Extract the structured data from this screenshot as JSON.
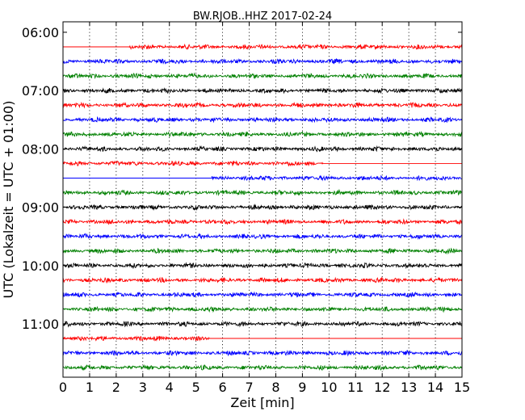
{
  "chart_data": {
    "type": "line",
    "title": "BW.RJOB..HHZ 2017-02-24",
    "xlabel": "Zeit  [min]",
    "ylabel": "UTC (Lokalzeit = UTC + 01:00)",
    "xlim": [
      0,
      15
    ],
    "x_ticks": [
      "0",
      "1",
      "2",
      "3",
      "4",
      "5",
      "6",
      "7",
      "8",
      "9",
      "10",
      "11",
      "12",
      "13",
      "14",
      "15"
    ],
    "y_ticks": [
      "06:00",
      "07:00",
      "08:00",
      "09:00",
      "10:00",
      "11:00"
    ],
    "grid": "vertical dotted",
    "legend": "none",
    "trace_interval_minutes": 15,
    "traces": [
      {
        "start": "06:00",
        "color": "#ff0000",
        "data_from_min": 2.5,
        "data_to_min": 15
      },
      {
        "start": "06:15",
        "color": "#0000ff",
        "data_from_min": 0,
        "data_to_min": 15
      },
      {
        "start": "06:30",
        "color": "#008000",
        "data_from_min": 0,
        "data_to_min": 15
      },
      {
        "start": "06:45",
        "color": "#000000",
        "data_from_min": 0,
        "data_to_min": 15
      },
      {
        "start": "07:00",
        "color": "#ff0000",
        "data_from_min": 0,
        "data_to_min": 15
      },
      {
        "start": "07:15",
        "color": "#0000ff",
        "data_from_min": 0,
        "data_to_min": 15
      },
      {
        "start": "07:30",
        "color": "#008000",
        "data_from_min": 0,
        "data_to_min": 15
      },
      {
        "start": "07:45",
        "color": "#000000",
        "data_from_min": 0,
        "data_to_min": 15
      },
      {
        "start": "08:00",
        "color": "#ff0000",
        "data_from_min": 0,
        "data_to_min": 9.8
      },
      {
        "start": "08:15",
        "color": "#0000ff",
        "data_from_min": 5.6,
        "data_to_min": 15
      },
      {
        "start": "08:30",
        "color": "#008000",
        "data_from_min": 0,
        "data_to_min": 15
      },
      {
        "start": "08:45",
        "color": "#000000",
        "data_from_min": 0,
        "data_to_min": 15
      },
      {
        "start": "09:00",
        "color": "#ff0000",
        "data_from_min": 0,
        "data_to_min": 15
      },
      {
        "start": "09:15",
        "color": "#0000ff",
        "data_from_min": 0,
        "data_to_min": 15
      },
      {
        "start": "09:30",
        "color": "#008000",
        "data_from_min": 0,
        "data_to_min": 15
      },
      {
        "start": "09:45",
        "color": "#000000",
        "data_from_min": 0,
        "data_to_min": 15
      },
      {
        "start": "10:00",
        "color": "#ff0000",
        "data_from_min": 0,
        "data_to_min": 15
      },
      {
        "start": "10:15",
        "color": "#0000ff",
        "data_from_min": 0,
        "data_to_min": 15
      },
      {
        "start": "10:30",
        "color": "#008000",
        "data_from_min": 0,
        "data_to_min": 15
      },
      {
        "start": "10:45",
        "color": "#000000",
        "data_from_min": 0,
        "data_to_min": 15
      },
      {
        "start": "11:00",
        "color": "#ff0000",
        "data_from_min": 0,
        "data_to_min": 5.5
      },
      {
        "start": "11:15",
        "color": "#0000ff",
        "data_from_min": 0,
        "data_to_min": 15
      },
      {
        "start": "11:30",
        "color": "#008000",
        "data_from_min": 0,
        "data_to_min": 15
      }
    ]
  }
}
